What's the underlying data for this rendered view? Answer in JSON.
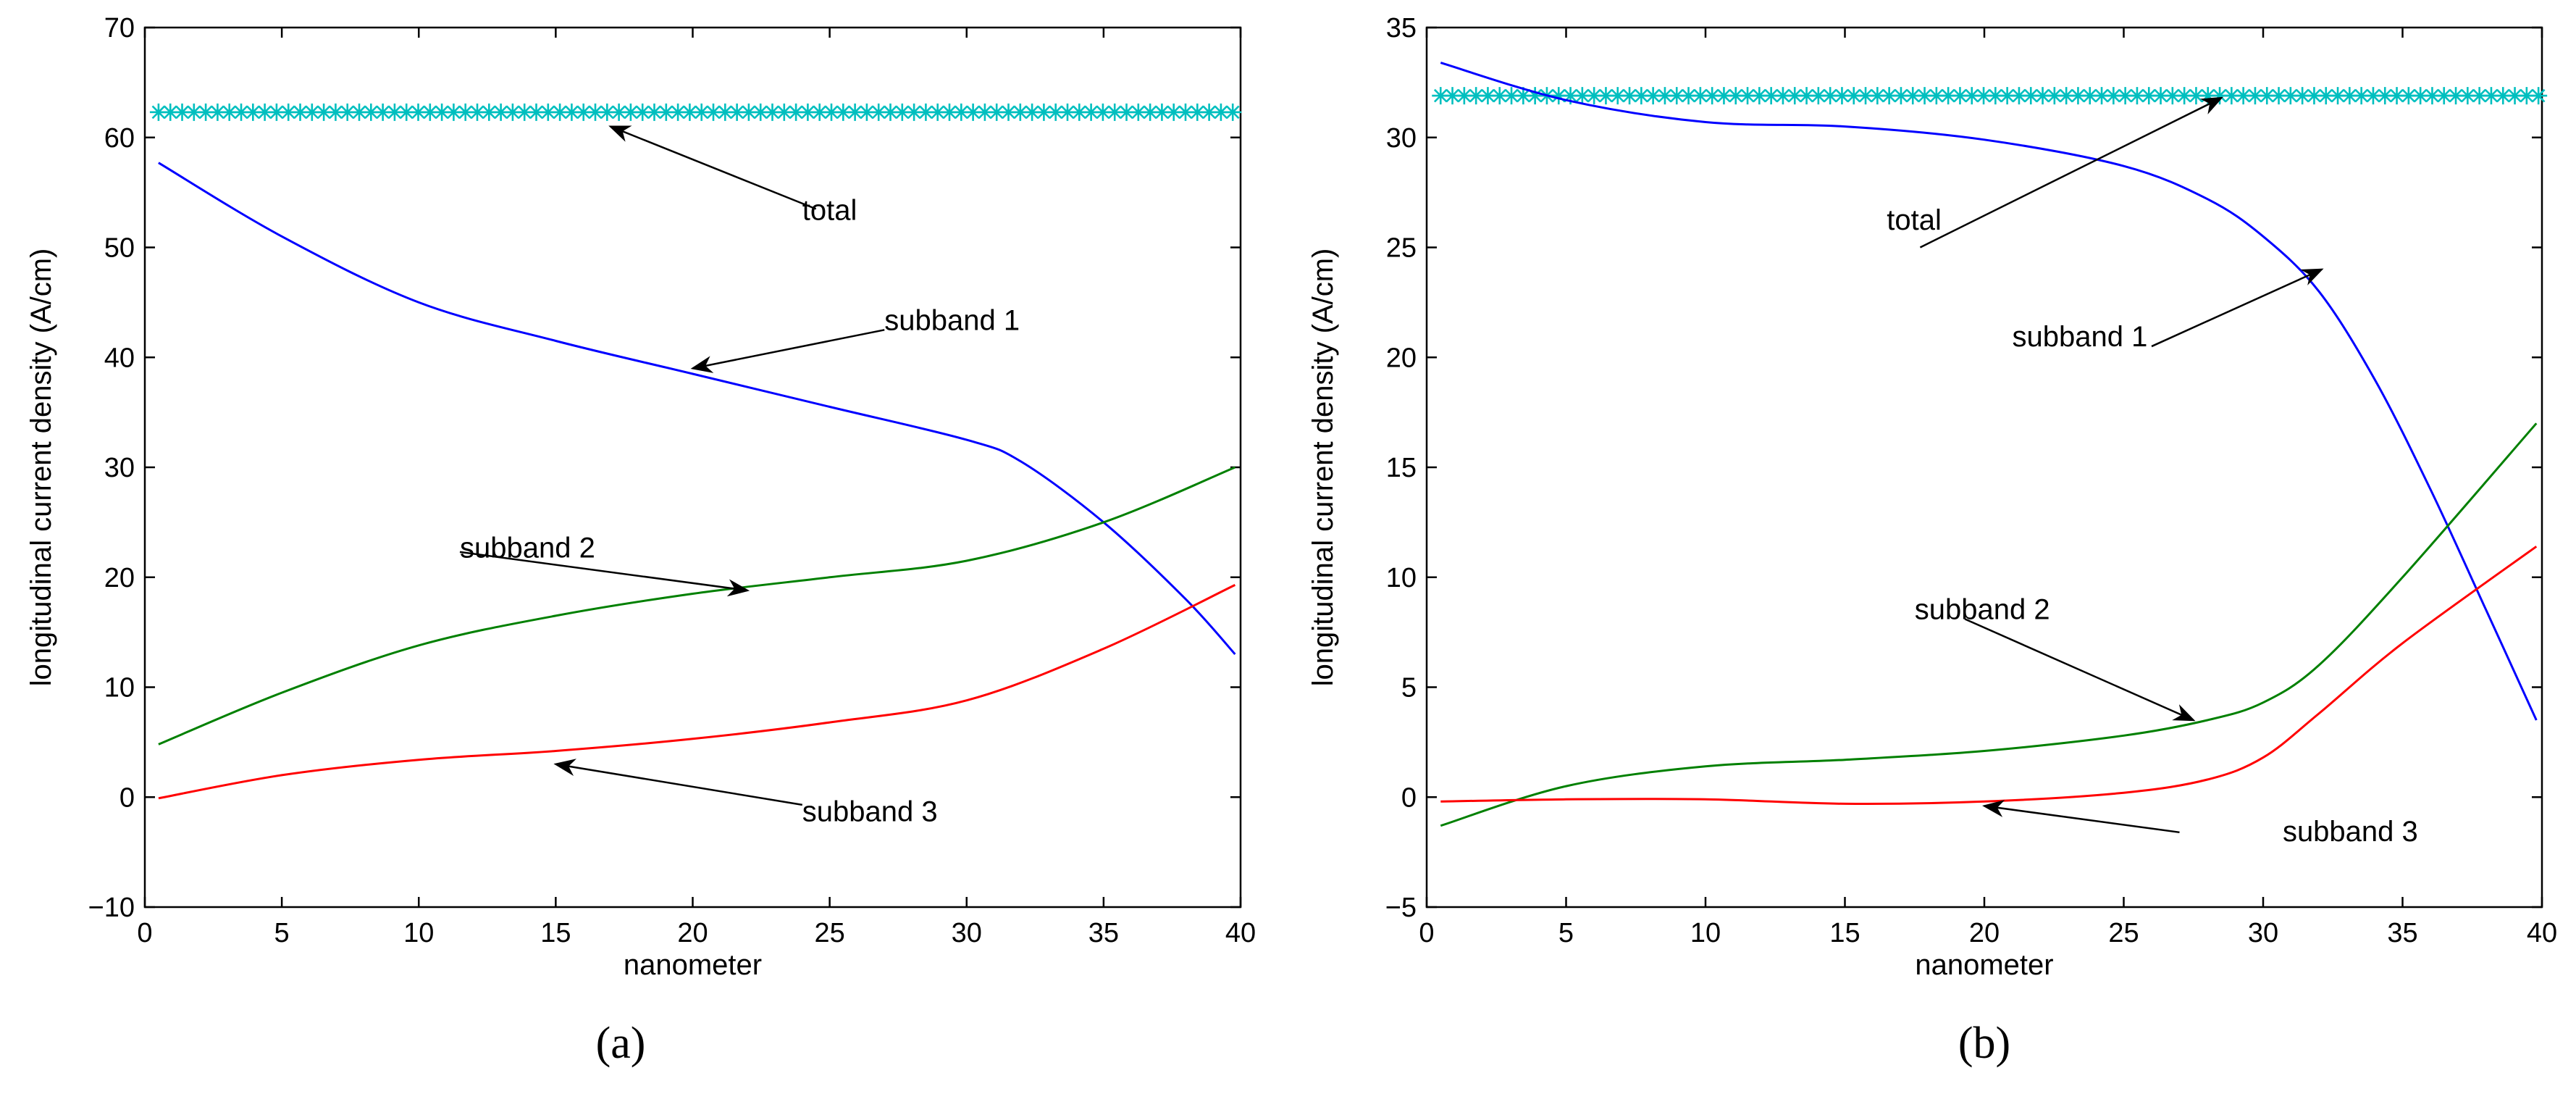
{
  "chart_data": [
    {
      "type": "line",
      "panel_label": "(a)",
      "xlabel": "nanometer",
      "ylabel": "longitudinal current density (A/cm)",
      "xlim": [
        0,
        40
      ],
      "ylim": [
        -10,
        70
      ],
      "x_ticks": [
        "0",
        "5",
        "10",
        "15",
        "20",
        "25",
        "30",
        "35",
        "40"
      ],
      "y_ticks": [
        "−10",
        "0",
        "10",
        "20",
        "30",
        "40",
        "50",
        "60",
        "70"
      ],
      "series": [
        {
          "name": "total",
          "color": "#00bfbf",
          "marker": "asterisk",
          "x": [
            0.5,
            40
          ],
          "y": [
            62.3,
            62.3
          ]
        },
        {
          "name": "subband 1",
          "color": "#0000ff",
          "x": [
            0.5,
            5,
            10,
            15,
            20,
            25,
            30,
            32,
            35,
            38,
            39.8
          ],
          "y": [
            57.7,
            51,
            45,
            41.5,
            38.5,
            35.5,
            32.5,
            30.5,
            25,
            18,
            13
          ]
        },
        {
          "name": "subband 2",
          "color": "#008000",
          "x": [
            0.5,
            5,
            10,
            15,
            20,
            25,
            30,
            35,
            39.8
          ],
          "y": [
            4.8,
            9.5,
            13.8,
            16.5,
            18.5,
            20,
            21.5,
            25,
            30
          ]
        },
        {
          "name": "subband 3",
          "color": "#ff0000",
          "x": [
            0.5,
            5,
            10,
            15,
            20,
            25,
            30,
            35,
            39.8
          ],
          "y": [
            -0.1,
            2,
            3.4,
            4.2,
            5.3,
            6.8,
            8.8,
            13.5,
            19.3
          ]
        }
      ],
      "annotations": [
        {
          "text": "total",
          "text_at": [
            24,
            52.5
          ],
          "arrow_from": [
            24.5,
            53.5
          ],
          "arrow_to": [
            17,
            61
          ]
        },
        {
          "text": "subband 1",
          "text_at": [
            27,
            42.5
          ],
          "arrow_from": [
            27,
            42.5
          ],
          "arrow_to": [
            20,
            39
          ]
        },
        {
          "text": "subband 2",
          "text_at": [
            11.5,
            21.8
          ],
          "arrow_from": [
            11.5,
            22.3
          ],
          "arrow_to": [
            22,
            18.8
          ]
        },
        {
          "text": "subband 3",
          "text_at": [
            24,
            -2.2
          ],
          "arrow_from": [
            24,
            -0.7
          ],
          "arrow_to": [
            15,
            3
          ]
        }
      ]
    },
    {
      "type": "line",
      "panel_label": "(b)",
      "xlabel": "nanometer",
      "ylabel": "longitudinal current density (A/cm)",
      "xlim": [
        0,
        40
      ],
      "ylim": [
        -5,
        35
      ],
      "x_ticks": [
        "0",
        "5",
        "10",
        "15",
        "20",
        "25",
        "30",
        "35",
        "40"
      ],
      "y_ticks": [
        "−5",
        "0",
        "5",
        "10",
        "15",
        "20",
        "25",
        "30",
        "35"
      ],
      "series": [
        {
          "name": "total",
          "color": "#00bfbf",
          "marker": "asterisk",
          "x": [
            0.5,
            40
          ],
          "y": [
            31.9,
            31.9
          ]
        },
        {
          "name": "subband 1",
          "color": "#0000ff",
          "x": [
            0.5,
            5,
            10,
            15,
            20,
            25,
            28,
            30,
            32,
            34,
            36,
            38,
            39.8
          ],
          "y": [
            33.4,
            31.7,
            30.7,
            30.5,
            29.9,
            28.7,
            27.2,
            25.5,
            23,
            19,
            14,
            8.5,
            3.5
          ]
        },
        {
          "name": "subband 2",
          "color": "#008000",
          "x": [
            0.5,
            5,
            10,
            15,
            20,
            25,
            28,
            30,
            32,
            35,
            39.8
          ],
          "y": [
            -1.3,
            0.5,
            1.4,
            1.7,
            2.1,
            2.8,
            3.5,
            4.3,
            6,
            10,
            17
          ]
        },
        {
          "name": "subband 3",
          "color": "#ff0000",
          "x": [
            0.5,
            5,
            10,
            15,
            20,
            25,
            28,
            30,
            32,
            35,
            39.8
          ],
          "y": [
            -0.2,
            -0.1,
            -0.1,
            -0.3,
            -0.2,
            0.2,
            0.8,
            1.8,
            3.8,
            7,
            11.4
          ]
        }
      ],
      "annotations": [
        {
          "text": "total",
          "text_at": [
            16.5,
            25.8
          ],
          "arrow_from": [
            17.7,
            25
          ],
          "arrow_to": [
            28.5,
            31.8
          ]
        },
        {
          "text": "subband 1",
          "text_at": [
            21,
            20.5
          ],
          "arrow_from": [
            26,
            20.5
          ],
          "arrow_to": [
            32.1,
            24
          ]
        },
        {
          "text": "subband 2",
          "text_at": [
            17.5,
            8.1
          ],
          "arrow_from": [
            19.3,
            8.1
          ],
          "arrow_to": [
            27.5,
            3.5
          ]
        },
        {
          "text": "subband 3",
          "text_at": [
            30.7,
            -2
          ],
          "arrow_from": [
            27,
            -1.6
          ],
          "arrow_to": [
            20,
            -0.4
          ]
        }
      ]
    }
  ]
}
